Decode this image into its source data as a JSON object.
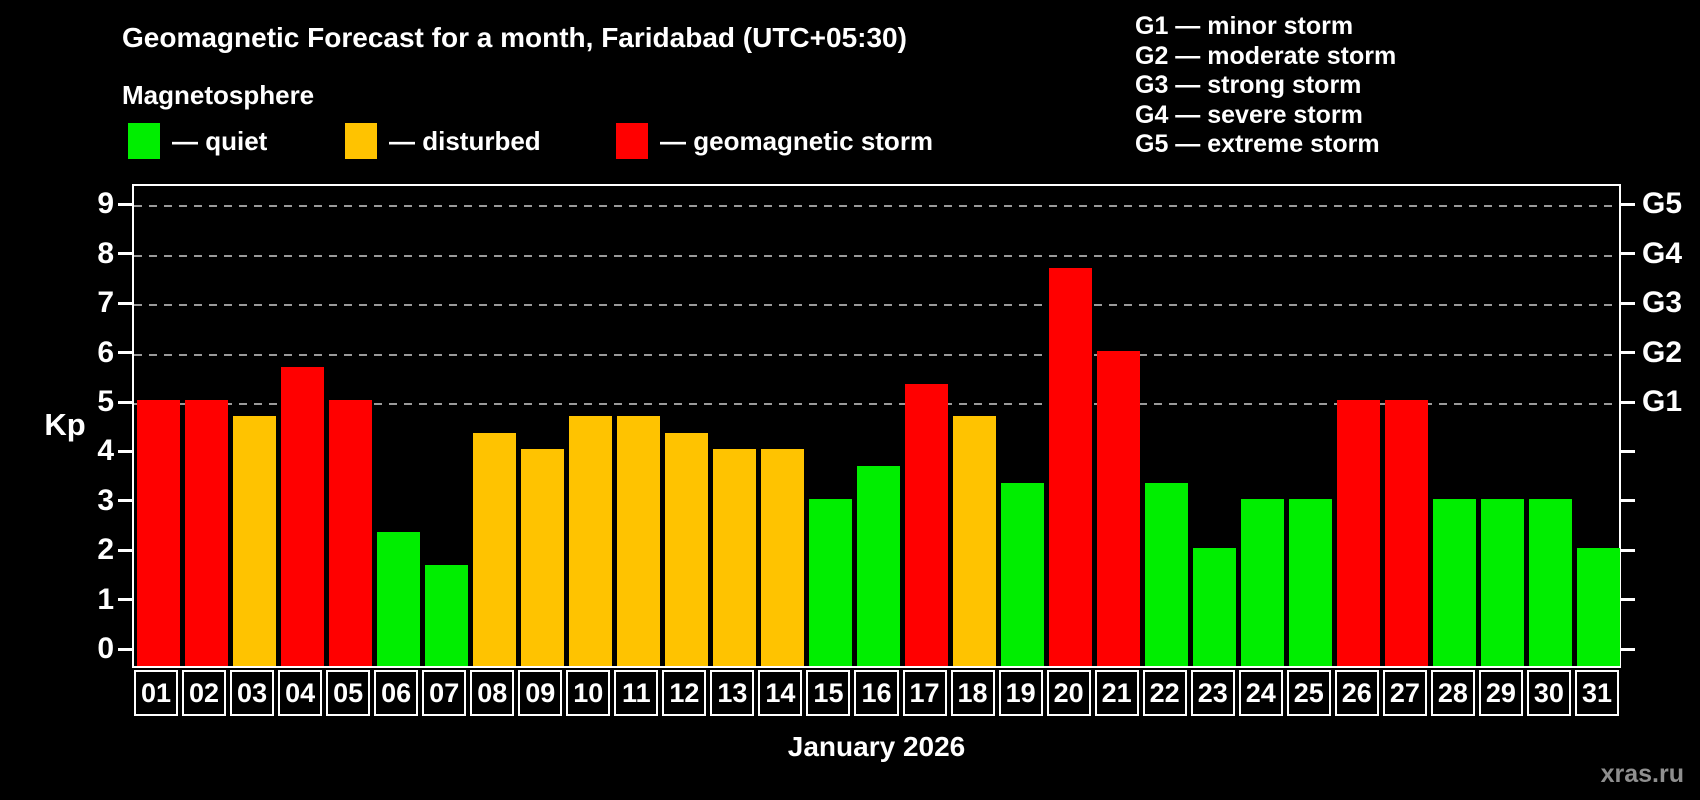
{
  "header": {
    "title": "Geomagnetic Forecast for a month, Faridabad (UTC+05:30)",
    "subtitle": "Magnetosphere"
  },
  "legend": {
    "items": [
      {
        "status": "quiet",
        "label": "— quiet",
        "color": "#00ee00"
      },
      {
        "status": "disturbed",
        "label": "— disturbed",
        "color": "#ffc300"
      },
      {
        "status": "storm",
        "label": "— geomagnetic storm",
        "color": "#ff0000"
      }
    ]
  },
  "g_scale_legend": {
    "lines": [
      "G1 — minor storm",
      "G2 — moderate storm",
      "G3 — strong storm",
      "G4 — severe storm",
      "G5 — extreme storm"
    ]
  },
  "axes": {
    "ylabel_left": "Kp",
    "yticks_left": [
      "0",
      "1",
      "2",
      "3",
      "4",
      "5",
      "6",
      "7",
      "8",
      "9"
    ],
    "yticks_right": [
      {
        "label": "G1",
        "kp": 5
      },
      {
        "label": "G2",
        "kp": 6
      },
      {
        "label": "G3",
        "kp": 7
      },
      {
        "label": "G4",
        "kp": 8
      },
      {
        "label": "G5",
        "kp": 9
      }
    ],
    "xlabel": "January 2026"
  },
  "watermark": "xras.ru",
  "chart_data": {
    "type": "bar",
    "title": "Geomagnetic Forecast for a month, Faridabad (UTC+05:30)",
    "subtitle": "Magnetosphere",
    "xlabel": "January 2026",
    "ylabel": "Kp",
    "ylim": [
      0,
      9.4
    ],
    "grid": "horizontal dashed lines at Kp 5,6,7,8,9",
    "gridlines_kp": [
      5,
      6,
      7,
      8,
      9
    ],
    "legend_position": "top-left",
    "categories": [
      "01",
      "02",
      "03",
      "04",
      "05",
      "06",
      "07",
      "08",
      "09",
      "10",
      "11",
      "12",
      "13",
      "14",
      "15",
      "16",
      "17",
      "18",
      "19",
      "20",
      "21",
      "22",
      "23",
      "24",
      "25",
      "26",
      "27",
      "28",
      "29",
      "30",
      "31"
    ],
    "series": [
      {
        "name": "Kp forecast",
        "values": [
          5,
          5,
          4.67,
          5.67,
          5,
          2.33,
          1.67,
          4.33,
          4,
          4.67,
          4.67,
          4.33,
          4,
          4,
          3,
          3.67,
          5.33,
          4.67,
          3.33,
          7.67,
          6,
          3.33,
          2,
          3,
          3,
          5,
          5,
          3,
          3,
          3,
          2
        ]
      }
    ],
    "statuses": [
      "storm",
      "storm",
      "disturbed",
      "storm",
      "storm",
      "quiet",
      "quiet",
      "disturbed",
      "disturbed",
      "disturbed",
      "disturbed",
      "disturbed",
      "disturbed",
      "disturbed",
      "quiet",
      "quiet",
      "storm",
      "disturbed",
      "quiet",
      "storm",
      "storm",
      "quiet",
      "quiet",
      "quiet",
      "quiet",
      "storm",
      "storm",
      "quiet",
      "quiet",
      "quiet",
      "quiet"
    ],
    "status_colors": {
      "quiet": "#00ee00",
      "disturbed": "#ffc300",
      "storm": "#ff0000"
    },
    "colors": {
      "background": "#000000",
      "axis": "#ffffff",
      "grid": "#9a9a9a",
      "text": "#ffffff",
      "watermark": "#8f8f8f"
    }
  }
}
